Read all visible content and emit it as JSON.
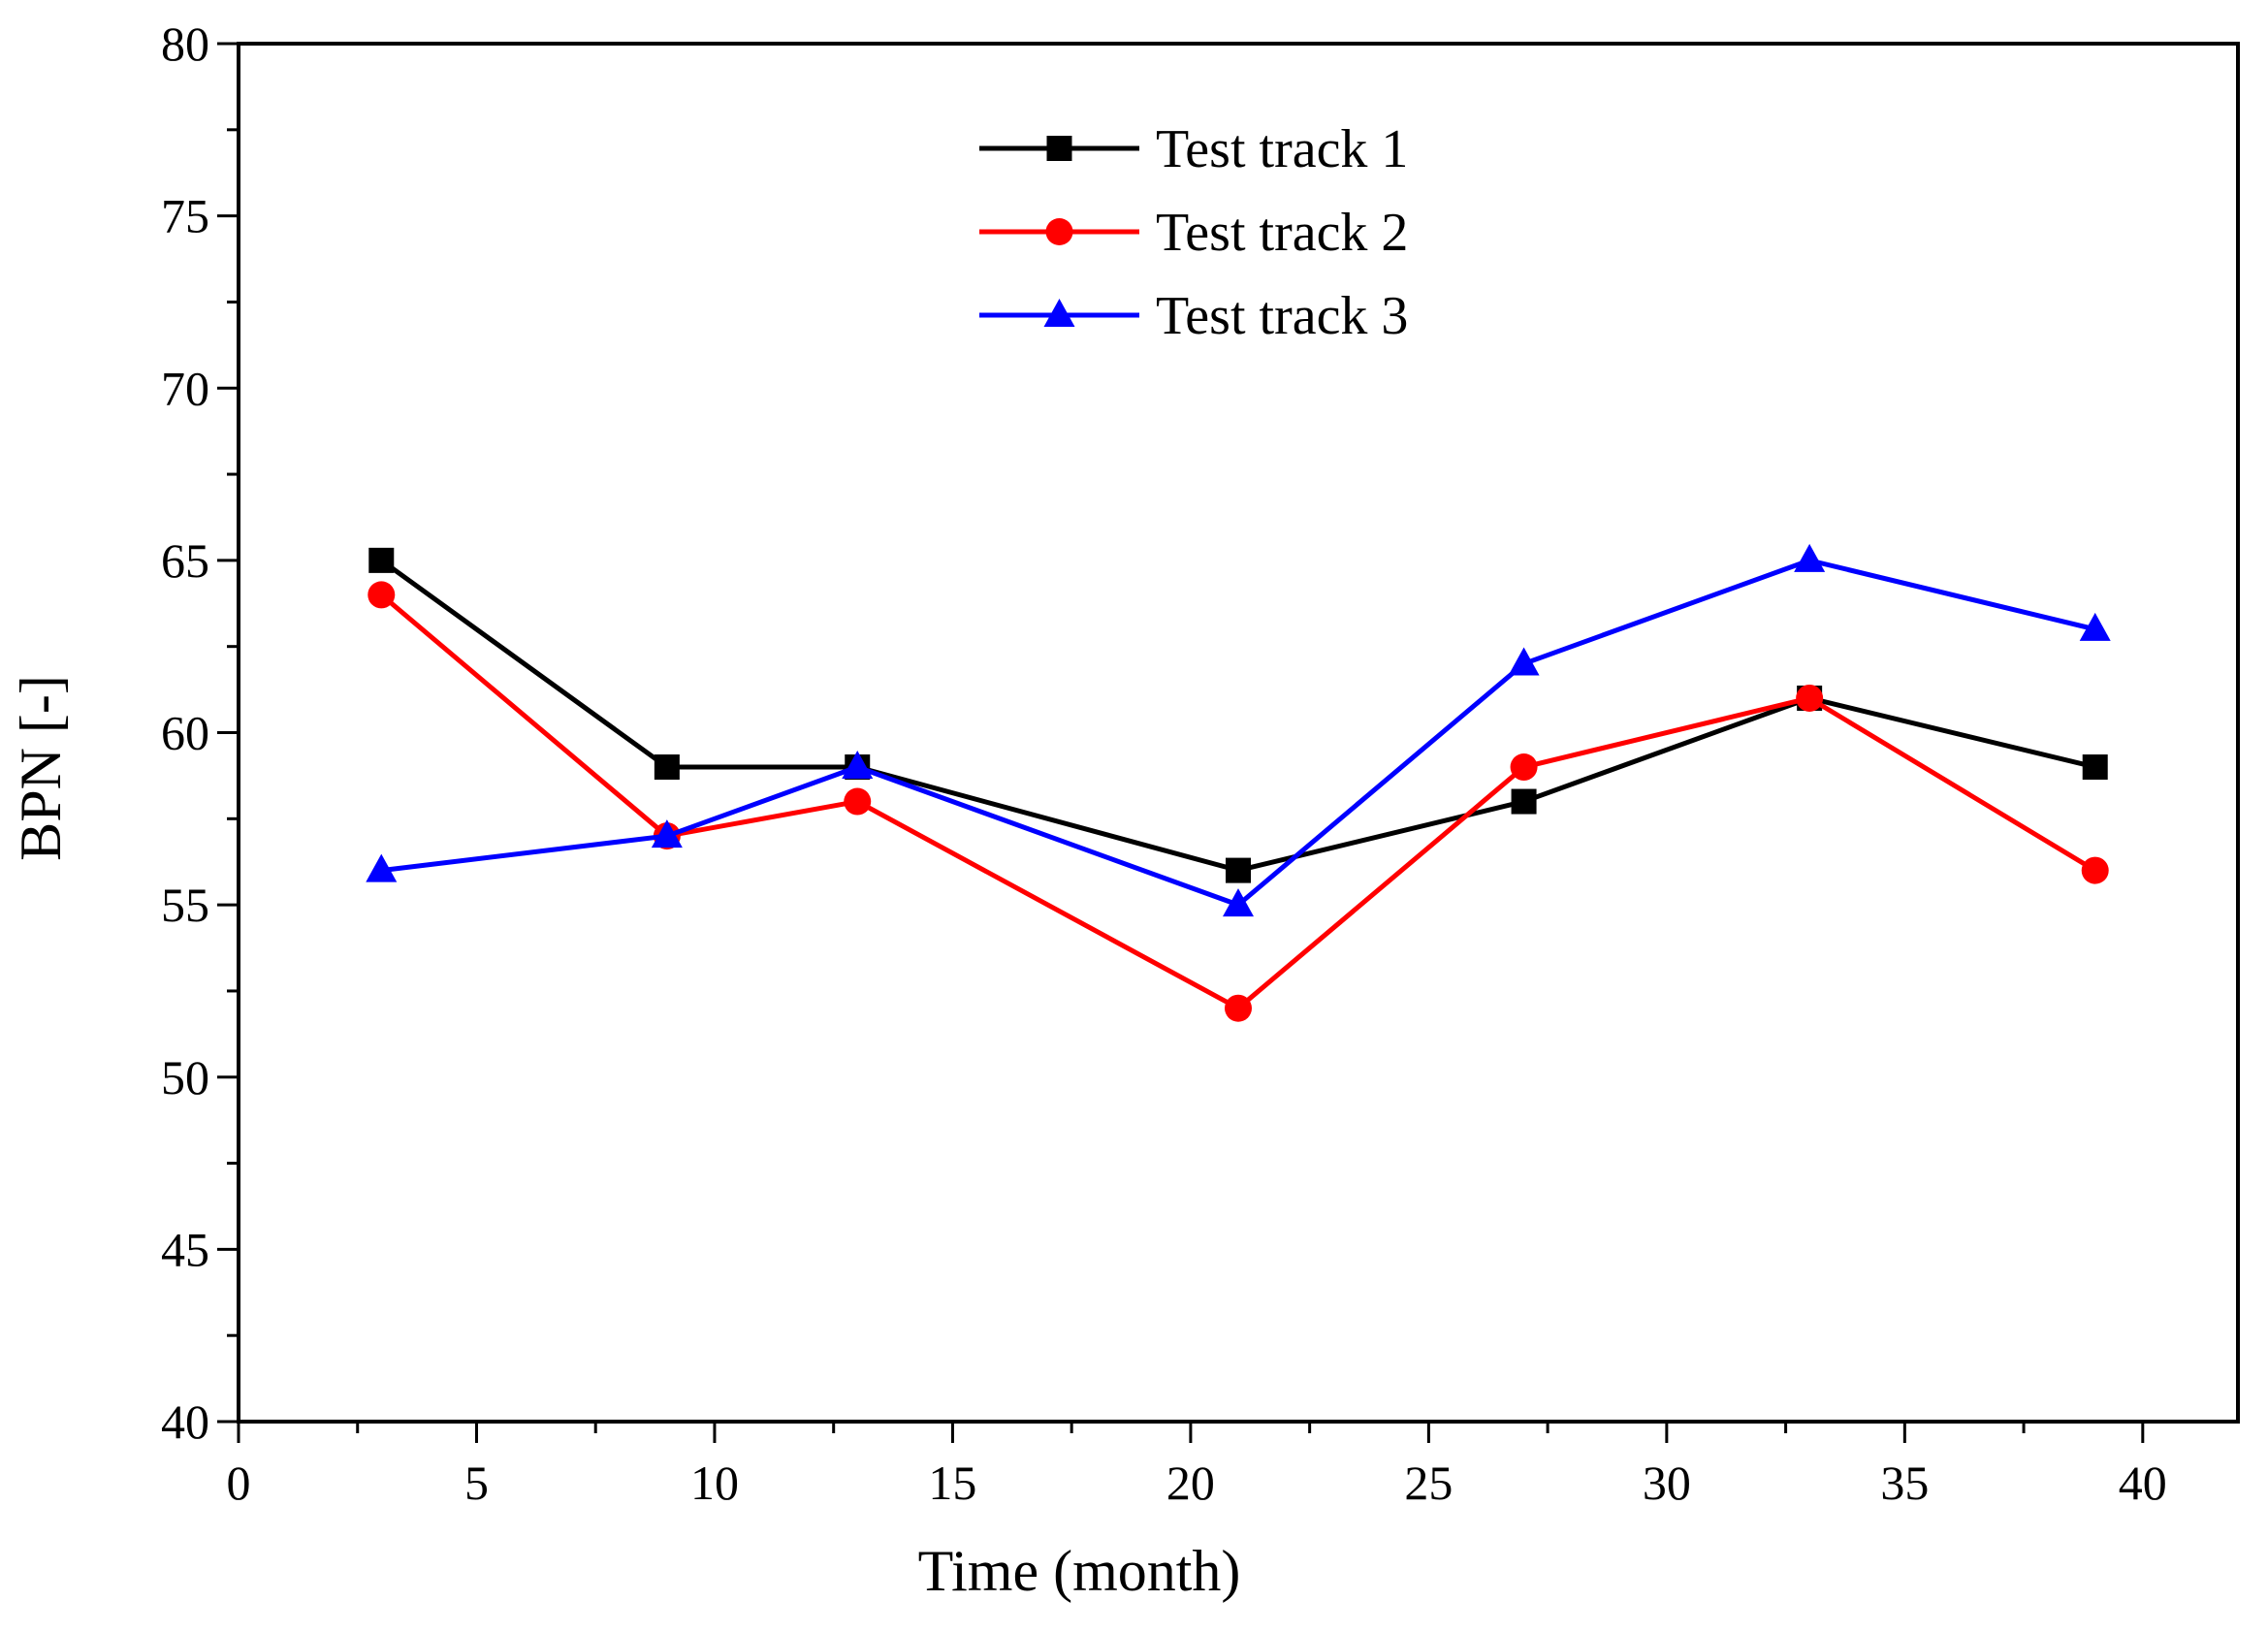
{
  "chart_data": {
    "type": "line",
    "title": "",
    "xlabel": "Time (month)",
    "ylabel": "BPN [-]",
    "xlim": [
      0,
      42
    ],
    "ylim": [
      40,
      80
    ],
    "xticks": [
      0,
      5,
      10,
      15,
      20,
      25,
      30,
      35,
      40
    ],
    "yticks": [
      40,
      45,
      50,
      55,
      60,
      65,
      70,
      75,
      80
    ],
    "xtick_labels": [
      "0",
      "5",
      "10",
      "15",
      "20",
      "25",
      "30",
      "35",
      "40"
    ],
    "ytick_labels": [
      "40",
      "45",
      "50",
      "55",
      "60",
      "65",
      "70",
      "75",
      "80"
    ],
    "grid": false,
    "legend_position": "top-center",
    "x": [
      3,
      9,
      13,
      21,
      27,
      33,
      39
    ],
    "series": [
      {
        "name": "Test track 1",
        "color": "#000000",
        "marker": "square",
        "values": [
          65,
          59,
          59,
          56,
          58,
          61,
          59
        ]
      },
      {
        "name": "Test track 2",
        "color": "#ff0000",
        "marker": "circle",
        "values": [
          64,
          57,
          58,
          52,
          59,
          61,
          56
        ]
      },
      {
        "name": "Test track 3",
        "color": "#0000ff",
        "marker": "triangle",
        "values": [
          56,
          57,
          59,
          55,
          62,
          65,
          63
        ]
      }
    ]
  }
}
